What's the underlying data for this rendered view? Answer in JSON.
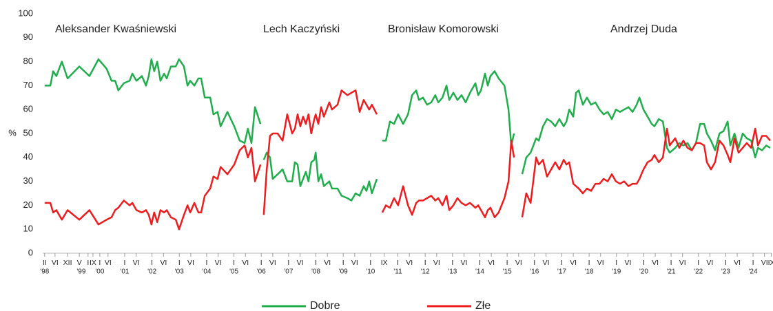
{
  "chart_data": {
    "type": "line",
    "ylabel": "%",
    "annotations": [
      "Aleksander Kwaśniewski",
      "Lech Kaczyński",
      "Bronisław Komorowski",
      "Andrzej Duda"
    ],
    "ylim": [
      0,
      100
    ],
    "yticks": [
      0,
      10,
      20,
      30,
      40,
      50,
      60,
      70,
      80,
      90,
      100
    ],
    "xlim": [
      1998,
      2024.68
    ],
    "xticks": [
      {
        "value": 1998.07,
        "label": "II"
      },
      {
        "value": 1998.45,
        "label": "VI"
      },
      {
        "value": 1998.91,
        "label": "XII"
      },
      {
        "value": 1999.34,
        "label": "V"
      },
      {
        "value": 1999.66,
        "label": "I"
      },
      {
        "value": 1999.84,
        "label": "IX"
      },
      {
        "value": 2000.09,
        "label": "I"
      },
      {
        "value": 2000.39,
        "label": "VI"
      },
      {
        "value": 2001.0,
        "label": "I"
      },
      {
        "value": 2001.42,
        "label": "VI"
      },
      {
        "value": 2002.0,
        "label": "I"
      },
      {
        "value": 2002.42,
        "label": "VI"
      },
      {
        "value": 2003.0,
        "label": "I"
      },
      {
        "value": 2003.42,
        "label": "VI"
      },
      {
        "value": 2004.0,
        "label": "I"
      },
      {
        "value": 2004.42,
        "label": "VI"
      },
      {
        "value": 2005.0,
        "label": "I"
      },
      {
        "value": 2005.42,
        "label": "VI"
      },
      {
        "value": 2006.0,
        "label": "I"
      },
      {
        "value": 2006.42,
        "label": "VI"
      },
      {
        "value": 2007.0,
        "label": "I"
      },
      {
        "value": 2007.42,
        "label": "VI"
      },
      {
        "value": 2008.0,
        "label": "I"
      },
      {
        "value": 2008.42,
        "label": "VI"
      },
      {
        "value": 2009.0,
        "label": "I"
      },
      {
        "value": 2009.42,
        "label": "VI"
      },
      {
        "value": 2010.0,
        "label": "I"
      },
      {
        "value": 2010.5,
        "label": "IX"
      },
      {
        "value": 2011.0,
        "label": "I"
      },
      {
        "value": 2011.42,
        "label": "VI"
      },
      {
        "value": 2012.0,
        "label": "I"
      },
      {
        "value": 2012.42,
        "label": "VI"
      },
      {
        "value": 2013.0,
        "label": "I"
      },
      {
        "value": 2013.42,
        "label": "VI"
      },
      {
        "value": 2014.0,
        "label": "I"
      },
      {
        "value": 2014.42,
        "label": "VI"
      },
      {
        "value": 2015.0,
        "label": "I"
      },
      {
        "value": 2015.42,
        "label": "VI"
      },
      {
        "value": 2016.0,
        "label": "I"
      },
      {
        "value": 2016.42,
        "label": "VI"
      },
      {
        "value": 2017.0,
        "label": "I"
      },
      {
        "value": 2017.42,
        "label": "VI"
      },
      {
        "value": 2018.0,
        "label": "I"
      },
      {
        "value": 2018.42,
        "label": "VI"
      },
      {
        "value": 2019.0,
        "label": "I"
      },
      {
        "value": 2019.42,
        "label": "VI"
      },
      {
        "value": 2020.0,
        "label": "I"
      },
      {
        "value": 2020.42,
        "label": "VI"
      },
      {
        "value": 2021.0,
        "label": "I"
      },
      {
        "value": 2021.42,
        "label": "VI"
      },
      {
        "value": 2022.0,
        "label": "I"
      },
      {
        "value": 2022.42,
        "label": "VI"
      },
      {
        "value": 2023.0,
        "label": "I"
      },
      {
        "value": 2023.42,
        "label": "VI"
      },
      {
        "value": 2024.0,
        "label": "I"
      },
      {
        "value": 2024.42,
        "label": "VI"
      },
      {
        "value": 2024.67,
        "label": "IX"
      }
    ],
    "year_labels": [
      {
        "value": 1998.07,
        "label": "'98"
      },
      {
        "value": 1999.41,
        "label": "'99"
      },
      {
        "value": 2000.09,
        "label": "'00"
      },
      {
        "value": 2001.0,
        "label": "'01"
      },
      {
        "value": 2002.0,
        "label": "'02"
      },
      {
        "value": 2003.0,
        "label": "'03"
      },
      {
        "value": 2004.0,
        "label": "'04"
      },
      {
        "value": 2005.0,
        "label": "'05"
      },
      {
        "value": 2006.0,
        "label": "'06"
      },
      {
        "value": 2007.0,
        "label": "'07"
      },
      {
        "value": 2008.0,
        "label": "'08"
      },
      {
        "value": 2009.0,
        "label": "'09"
      },
      {
        "value": 2010.0,
        "label": "'10"
      },
      {
        "value": 2011.0,
        "label": "'11"
      },
      {
        "value": 2012.0,
        "label": "'12"
      },
      {
        "value": 2013.0,
        "label": "'13"
      },
      {
        "value": 2014.0,
        "label": "'14"
      },
      {
        "value": 2015.0,
        "label": "'15"
      },
      {
        "value": 2016.0,
        "label": "'16"
      },
      {
        "value": 2017.0,
        "label": "'17"
      },
      {
        "value": 2018.0,
        "label": "'18"
      },
      {
        "value": 2019.0,
        "label": "'19"
      },
      {
        "value": 2020.0,
        "label": "'20"
      },
      {
        "value": 2021.0,
        "label": "'21"
      },
      {
        "value": 2022.0,
        "label": "'22"
      },
      {
        "value": 2023.0,
        "label": "'23"
      },
      {
        "value": 2024.0,
        "label": "'24"
      }
    ],
    "x": [
      1998.07,
      1998.28,
      1998.38,
      1998.5,
      1998.7,
      1998.91,
      1999.34,
      1999.71,
      2000.04,
      2000.34,
      2000.52,
      2000.65,
      2000.77,
      2000.97,
      2001.18,
      2001.28,
      2001.43,
      2001.63,
      2001.78,
      2001.88,
      2001.98,
      2002.08,
      2002.19,
      2002.31,
      2002.44,
      2002.54,
      2002.69,
      2002.87,
      2002.99,
      2003.17,
      2003.3,
      2003.4,
      2003.55,
      2003.7,
      2003.8,
      2003.93,
      2004.13,
      2004.25,
      2004.4,
      2004.51,
      2004.76,
      2005.01,
      2005.21,
      2005.39,
      2005.51,
      2005.64,
      2005.77,
      2005.97,
      null,
      2006.09,
      2006.2,
      2006.32,
      2006.42,
      2006.6,
      2006.78,
      2006.95,
      2007.13,
      2007.23,
      2007.33,
      2007.43,
      2007.53,
      2007.63,
      2007.73,
      2007.83,
      2007.94,
      2007.99,
      2008.09,
      2008.19,
      2008.29,
      2008.49,
      2008.59,
      2008.79,
      2008.94,
      2009.15,
      2009.3,
      2009.45,
      2009.6,
      2009.75,
      2009.85,
      2009.95,
      2010.05,
      2010.23,
      null,
      2010.43,
      2010.56,
      2010.71,
      2010.86,
      2011.01,
      2011.19,
      2011.37,
      2011.52,
      2011.67,
      2011.77,
      2011.92,
      2012.07,
      2012.22,
      2012.37,
      2012.48,
      2012.63,
      2012.78,
      2012.88,
      2013.03,
      2013.18,
      2013.33,
      2013.48,
      2013.64,
      2013.84,
      2013.94,
      2014.04,
      2014.19,
      2014.29,
      2014.39,
      2014.54,
      2014.69,
      2014.9,
      2015.05,
      2015.15,
      2015.25,
      null,
      2015.55,
      2015.7,
      2015.86,
      2016.06,
      2016.16,
      2016.31,
      2016.46,
      2016.61,
      2016.76,
      2016.91,
      2017.07,
      2017.17,
      2017.27,
      2017.42,
      2017.52,
      2017.62,
      2017.77,
      2017.92,
      2018.07,
      2018.23,
      2018.38,
      2018.53,
      2018.68,
      2018.83,
      2018.98,
      2019.13,
      2019.28,
      2019.44,
      2019.59,
      2019.74,
      2019.84,
      2019.99,
      2020.14,
      2020.29,
      2020.39,
      2020.55,
      2020.7,
      2020.85,
      2020.95,
      2021.15,
      2021.3,
      2021.45,
      2021.6,
      2021.76,
      2021.91,
      2022.06,
      2022.21,
      2022.31,
      2022.46,
      2022.61,
      2022.77,
      2022.92,
      2023.07,
      2023.17,
      2023.32,
      2023.47,
      2023.62,
      2023.77,
      2023.93,
      2024.08,
      2024.18,
      2024.33,
      2024.48,
      2024.63
    ],
    "series": [
      {
        "name": "Dobre",
        "color": "#1fae4b",
        "values": [
          70,
          70,
          76,
          74,
          80,
          73,
          78,
          74,
          81,
          77,
          72,
          72,
          68,
          71,
          72,
          75,
          72,
          74,
          70,
          74,
          81,
          76,
          80,
          72,
          75,
          73,
          78,
          78,
          81,
          78,
          70,
          72,
          70,
          73,
          73,
          65,
          65,
          58,
          59,
          53,
          59,
          53,
          47,
          46,
          52,
          46,
          61,
          54,
          null,
          39,
          42,
          40,
          31,
          33,
          35,
          30,
          30,
          38,
          37,
          28,
          31,
          34,
          30,
          38,
          39,
          42,
          30,
          33,
          28,
          30,
          27,
          27,
          24,
          23,
          22,
          25,
          24,
          28,
          26,
          30,
          25,
          31,
          null,
          47,
          47,
          55,
          54,
          58,
          54,
          58,
          66,
          68,
          64,
          65,
          62,
          63,
          66,
          63,
          65,
          70,
          64,
          67,
          64,
          66,
          63,
          67,
          71,
          66,
          68,
          75,
          70,
          74,
          76,
          73,
          70,
          60,
          45,
          50,
          null,
          33,
          40,
          42,
          48,
          47,
          53,
          56,
          55,
          53,
          56,
          53,
          55,
          60,
          57,
          67,
          68,
          62,
          65,
          62,
          63,
          60,
          58,
          59,
          56,
          60,
          59,
          60,
          61,
          59,
          62,
          65,
          60,
          57,
          54,
          53,
          56,
          55,
          44,
          42,
          44,
          46,
          45,
          46,
          43,
          46,
          54,
          54,
          50,
          47,
          43,
          50,
          51,
          55,
          45,
          50,
          44,
          50,
          48,
          47,
          40,
          44,
          43,
          45,
          44
        ]
      },
      {
        "name": "Złe",
        "color": "#ee1c1c",
        "values": [
          21,
          21,
          17,
          18,
          14,
          18,
          14,
          18,
          12,
          14,
          15,
          18,
          19,
          22,
          20,
          21,
          18,
          17,
          18,
          16,
          12,
          17,
          13,
          18,
          17,
          18,
          15,
          14,
          10,
          16,
          20,
          17,
          21,
          17,
          17,
          24,
          27,
          32,
          31,
          36,
          33,
          37,
          43,
          45,
          40,
          44,
          30,
          37,
          null,
          16,
          35,
          49,
          50,
          50,
          47,
          58,
          50,
          52,
          58,
          53,
          57,
          54,
          58,
          50,
          56,
          58,
          54,
          61,
          57,
          63,
          60,
          62,
          68,
          66,
          67,
          68,
          59,
          64,
          62,
          60,
          62,
          58,
          null,
          17,
          20,
          19,
          23,
          20,
          28,
          20,
          16,
          21,
          22,
          22,
          23,
          24,
          22,
          23,
          20,
          24,
          18,
          20,
          23,
          21,
          20,
          21,
          19,
          20,
          18,
          15,
          18,
          19,
          15,
          17,
          23,
          30,
          47,
          40,
          null,
          15,
          25,
          21,
          40,
          37,
          39,
          32,
          35,
          38,
          35,
          39,
          37,
          38,
          29,
          28,
          27,
          25,
          27,
          26,
          29,
          29,
          31,
          30,
          33,
          30,
          29,
          30,
          28,
          29,
          29,
          31,
          35,
          38,
          39,
          41,
          38,
          40,
          52,
          45,
          48,
          44,
          47,
          44,
          43,
          46,
          46,
          45,
          38,
          35,
          38,
          47,
          45,
          41,
          38,
          48,
          42,
          44,
          46,
          44,
          52,
          45,
          49,
          49,
          47
        ]
      }
    ]
  }
}
